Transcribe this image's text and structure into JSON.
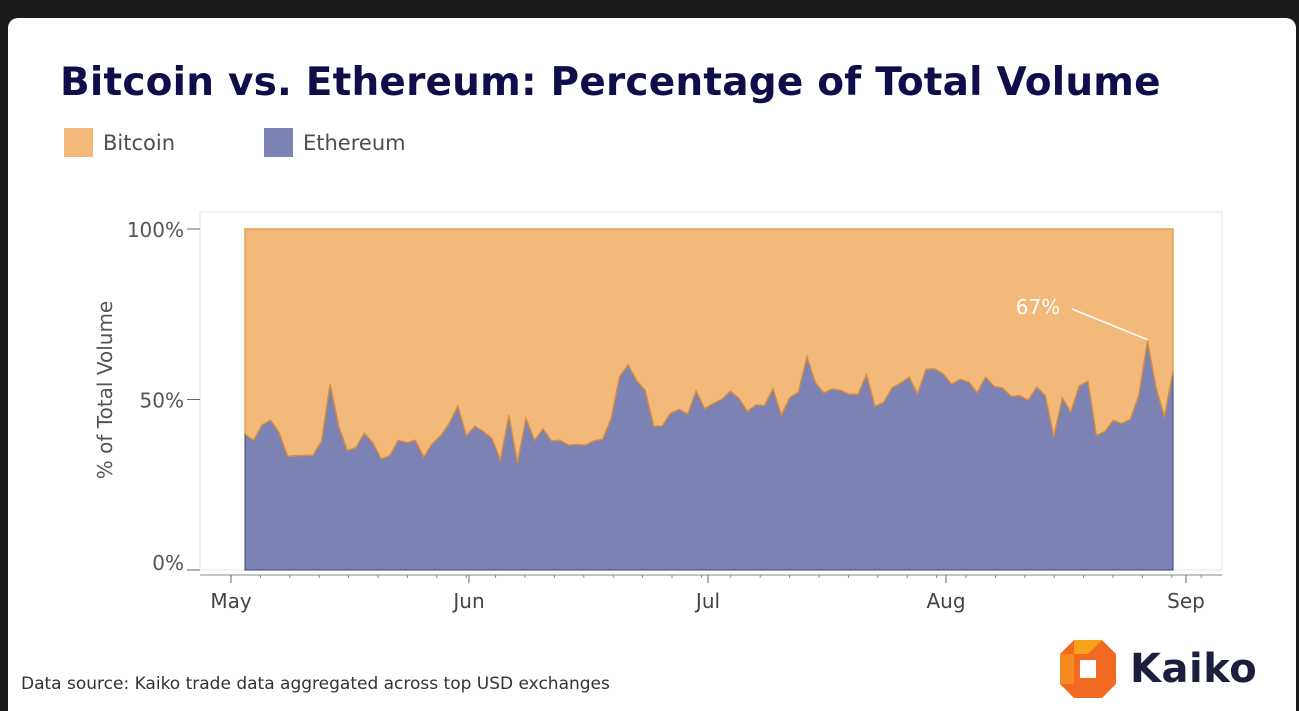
{
  "title": "Bitcoin vs. Ethereum: Percentage of Total Volume",
  "legend": [
    {
      "label": "Bitcoin",
      "color": "#f2b97a"
    },
    {
      "label": "Ethereum",
      "color": "#7c82b3"
    }
  ],
  "source": "Data source: Kaiko trade data aggregated across top USD exchanges",
  "logo": {
    "text": "Kaiko",
    "icon": "kaiko-logo-icon"
  },
  "chart_data": {
    "type": "area",
    "stacked": true,
    "title": "Bitcoin vs. Ethereum: Percentage of Total Volume",
    "xlabel": "",
    "ylabel": "% of Total Volume",
    "ylim": [
      0,
      100
    ],
    "y_ticks": [
      "0%",
      "50%",
      "100%"
    ],
    "x_ticks": [
      "May",
      "Jun",
      "Jul",
      "Aug",
      "Sep"
    ],
    "x_start": "May 1",
    "x_end": "Aug 31",
    "grid": false,
    "legend_position": "top-left",
    "series": [
      {
        "name": "Ethereum",
        "color": "#7c82b3",
        "values": [
          39.8,
          38.0,
          42.5,
          43.9,
          40.3,
          33.3,
          33.5,
          33.6,
          33.6,
          37.8,
          54.4,
          42.1,
          35.1,
          35.8,
          40.1,
          37.3,
          32.6,
          33.5,
          38.0,
          37.3,
          38.0,
          33.1,
          37.0,
          39.4,
          43.0,
          48.0,
          39.4,
          42.1,
          40.6,
          38.6,
          32.2,
          45.3,
          31.4,
          44.4,
          38.0,
          41.3,
          37.9,
          38.0,
          36.6,
          36.8,
          36.6,
          37.9,
          38.3,
          44.3,
          56.7,
          60.2,
          55.5,
          52.7,
          42.2,
          42.2,
          46.0,
          47.1,
          45.7,
          52.5,
          47.3,
          48.8,
          50.0,
          52.4,
          50.4,
          46.5,
          48.4,
          48.2,
          53.0,
          45.4,
          50.6,
          52.1,
          62.5,
          54.9,
          51.9,
          53.1,
          52.6,
          51.5,
          51.5,
          57.2,
          48.0,
          49.1,
          53.4,
          54.8,
          56.5,
          51.6,
          58.9,
          59.0,
          57.5,
          54.5,
          55.9,
          55.1,
          52.0,
          56.5,
          53.8,
          53.3,
          50.9,
          51.1,
          49.8,
          53.6,
          51.1,
          39.1,
          50.4,
          46.3,
          54.0,
          55.3,
          39.5,
          40.6,
          43.9,
          42.9,
          44.2,
          51.2,
          67.0,
          53.5,
          44.8,
          58.3
        ]
      },
      {
        "name": "Bitcoin",
        "color": "#f2b97a",
        "values": "complement to 100%"
      }
    ],
    "annotations": [
      {
        "text": "67%",
        "x": "Aug 28",
        "y": 67
      }
    ]
  }
}
